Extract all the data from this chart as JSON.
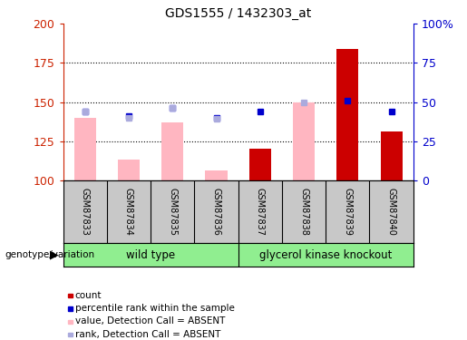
{
  "title": "GDS1555 / 1432303_at",
  "samples": [
    "GSM87833",
    "GSM87834",
    "GSM87835",
    "GSM87836",
    "GSM87837",
    "GSM87838",
    "GSM87839",
    "GSM87840"
  ],
  "ylim": [
    100,
    200
  ],
  "yticks_left": [
    100,
    125,
    150,
    175,
    200
  ],
  "yticks_right": [
    0,
    25,
    50,
    75,
    100
  ],
  "ytick_labels_right": [
    "0",
    "25",
    "50",
    "75",
    "100%"
  ],
  "bar_values_pink": [
    140,
    113,
    137,
    106,
    0,
    150,
    0,
    0
  ],
  "bar_values_red": [
    0,
    0,
    0,
    0,
    120,
    0,
    184,
    131
  ],
  "marker_blue_dark_left": [
    144,
    141,
    146,
    140,
    144,
    0,
    151,
    144
  ],
  "marker_blue_light_left": [
    144,
    140,
    146,
    139,
    0,
    150,
    0,
    0
  ],
  "pink_bar_color": "#FFB6C1",
  "red_bar_color": "#CC0000",
  "blue_dark_color": "#0000CC",
  "blue_light_color": "#AAAADD",
  "background_color": "#ffffff",
  "ylabel_left_color": "#CC2200",
  "ylabel_right_color": "#0000CC",
  "gray_bg": "#C8C8C8",
  "green_bg": "#90EE90",
  "wild_type_label": "wild type",
  "knockout_label": "glycerol kinase knockout",
  "genotype_label": "genotype/variation",
  "legend_labels": [
    "count",
    "percentile rank within the sample",
    "value, Detection Call = ABSENT",
    "rank, Detection Call = ABSENT"
  ]
}
